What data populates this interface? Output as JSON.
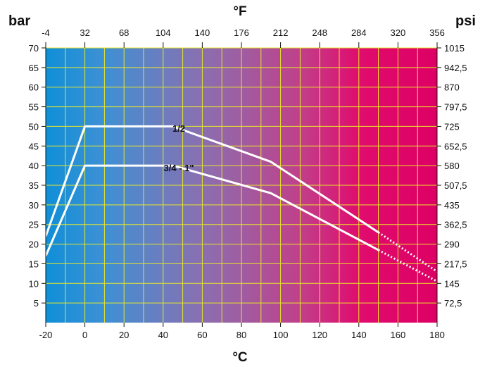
{
  "chart_data": {
    "type": "line",
    "x_axis_bottom": {
      "unit": "°C",
      "range": [
        -20,
        180
      ],
      "ticks": [
        -20,
        0,
        20,
        40,
        60,
        80,
        100,
        120,
        140,
        160,
        180
      ]
    },
    "x_axis_top": {
      "unit": "°F",
      "ticks": [
        "-4",
        "32",
        "68",
        "104",
        "140",
        "176",
        "212",
        "248",
        "284",
        "320",
        "356"
      ]
    },
    "y_axis_left": {
      "unit": "bar",
      "range": [
        0,
        70
      ],
      "ticks": [
        5,
        10,
        15,
        20,
        25,
        30,
        35,
        40,
        45,
        50,
        55,
        60,
        65,
        70
      ]
    },
    "y_axis_right": {
      "unit": "psi",
      "ticks": [
        "72,5",
        "145",
        "217,5",
        "290",
        "362,5",
        "435",
        "507,5",
        "580",
        "652,5",
        "725",
        "797,5",
        "870",
        "942,5",
        "1015"
      ]
    },
    "grid": true,
    "background_gradient": [
      "#0f8fd8",
      "#3f90d4",
      "#8a6fb0",
      "#c0408a",
      "#e00c6e",
      "#dd0064"
    ],
    "grid_color": "#e6e62a",
    "line_color": "#ffffff",
    "series": [
      {
        "name": "1/2",
        "points": [
          [
            -20,
            22
          ],
          [
            0,
            50
          ],
          [
            45,
            50
          ],
          [
            95,
            41
          ],
          [
            150,
            23
          ]
        ],
        "dotted_points": [
          [
            150,
            23
          ],
          [
            180,
            13
          ]
        ]
      },
      {
        "name": "3/4 - 1\"",
        "points": [
          [
            -20,
            17
          ],
          [
            0,
            40
          ],
          [
            45,
            40
          ],
          [
            95,
            33
          ],
          [
            150,
            18.5
          ]
        ],
        "dotted_points": [
          [
            150,
            18.5
          ],
          [
            180,
            10.5
          ]
        ]
      }
    ]
  }
}
